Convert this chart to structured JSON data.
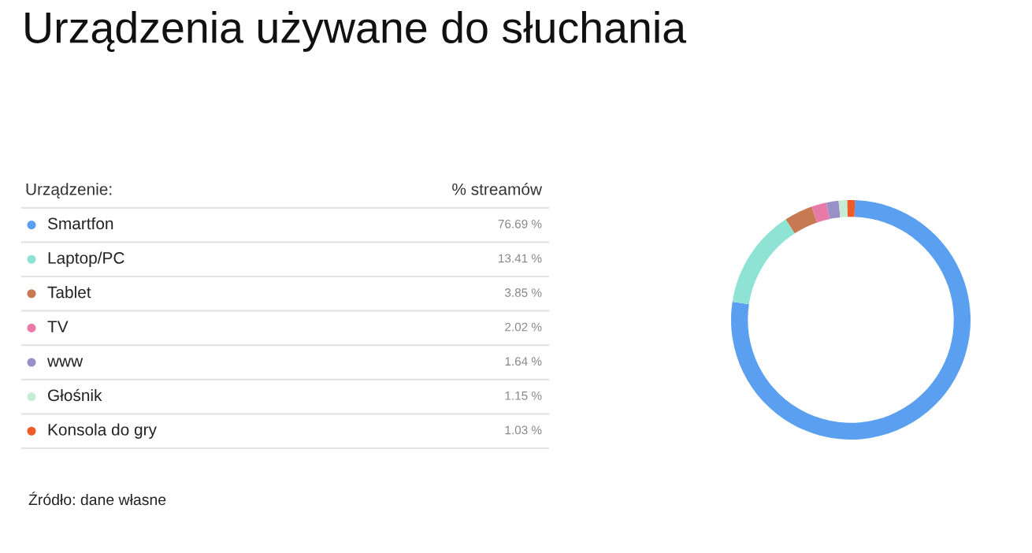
{
  "chart_data": {
    "type": "donut",
    "title": "Urządzenia używane do słuchania",
    "legend_title": "Urządzenie:",
    "categories": [
      "Smartfon",
      "Laptop/PC",
      "Tablet",
      "TV",
      "www",
      "Głośnik",
      "Konsola do gry"
    ],
    "values": [
      76.69,
      13.41,
      3.85,
      2.02,
      1.64,
      1.15,
      1.03
    ],
    "value_labels": [
      "76.69 %",
      "13.41 %",
      "3.85 %",
      "2.02 %",
      "1.64 %",
      "1.15 %",
      "1.03 %"
    ],
    "colors": [
      "#5a9ff0",
      "#8fe3d5",
      "#c77a52",
      "#e87aa8",
      "#9a90c8",
      "#c6ecd6",
      "#f05a28"
    ],
    "legend": "left",
    "annotations": [
      "% streamów",
      "Źródło: dane własne"
    ]
  }
}
